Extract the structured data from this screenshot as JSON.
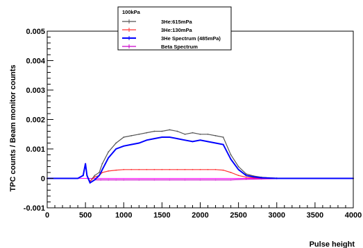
{
  "chart_data": {
    "type": "line",
    "xlabel": "Pulse height",
    "ylabel": "TPC counts / Beam monitor counts",
    "xlim": [
      0,
      4000
    ],
    "ylim": [
      -0.001,
      0.005
    ],
    "x_ticks": [
      0,
      500,
      1000,
      1500,
      2000,
      2500,
      3000,
      3500,
      4000
    ],
    "y_ticks": [
      -0.001,
      0,
      0.001,
      0.002,
      0.003,
      0.004,
      0.005
    ],
    "x_tick_labels": [
      "0",
      "500",
      "1000",
      "1500",
      "2000",
      "2500",
      "3000",
      "3500",
      "4000"
    ],
    "y_tick_labels": [
      "-0.001",
      "0",
      "0.001",
      "0.002",
      "0.003",
      "0.004",
      "0.005"
    ],
    "grid": false,
    "legend_position": "top-center",
    "legend_title": "100kPa",
    "series": [
      {
        "name": "3He:615mPa",
        "color": "#555555",
        "marker": "error-bar",
        "x": [
          0,
          400,
          470,
          500,
          520,
          560,
          620,
          680,
          720,
          800,
          900,
          1000,
          1100,
          1200,
          1300,
          1400,
          1500,
          1600,
          1700,
          1800,
          1900,
          2000,
          2100,
          2200,
          2300,
          2400,
          2500,
          2600,
          2700,
          2800,
          2900,
          3000,
          3100,
          3200,
          3500,
          4000
        ],
        "y": [
          0,
          0,
          0.0001,
          0.0005,
          0.0001,
          -0.0001,
          0.0001,
          0.0002,
          0.0005,
          0.0009,
          0.0012,
          0.0014,
          0.00145,
          0.0015,
          0.00155,
          0.0016,
          0.0016,
          0.00165,
          0.0016,
          0.0015,
          0.00155,
          0.0015,
          0.0015,
          0.00145,
          0.0014,
          0.0008,
          0.0004,
          0.00015,
          8e-05,
          4e-05,
          2e-05,
          1e-05,
          0,
          0,
          0,
          0
        ]
      },
      {
        "name": "3He:130mPa",
        "color": "#ff3333",
        "marker": "error-bar",
        "x": [
          0,
          400,
          470,
          500,
          520,
          560,
          620,
          680,
          720,
          800,
          900,
          1000,
          1100,
          1200,
          1300,
          1400,
          1500,
          1600,
          1700,
          1800,
          1900,
          2000,
          2100,
          2200,
          2300,
          2400,
          2500,
          2600,
          2700,
          2800,
          2900,
          3000,
          3100,
          3200,
          3500,
          4000
        ],
        "y": [
          0,
          0,
          0.0001,
          0.0005,
          0.0001,
          -0.0001,
          5e-05,
          0.0001,
          0.0002,
          0.00025,
          0.00028,
          0.0003,
          0.0003,
          0.0003,
          0.0003,
          0.0003,
          0.0003,
          0.0003,
          0.0003,
          0.0003,
          0.0003,
          0.0003,
          0.0003,
          0.0003,
          0.00028,
          0.0002,
          0.0001,
          4e-05,
          2e-05,
          1e-05,
          0,
          0,
          0,
          0,
          0,
          0
        ]
      },
      {
        "name": "3He Spectrum (485mPa)",
        "color": "#0000ff",
        "marker": "error-bar",
        "x": [
          0,
          400,
          470,
          500,
          520,
          560,
          620,
          680,
          720,
          800,
          900,
          1000,
          1100,
          1200,
          1300,
          1400,
          1500,
          1600,
          1700,
          1800,
          1900,
          2000,
          2100,
          2200,
          2300,
          2400,
          2500,
          2600,
          2700,
          2800,
          2900,
          3000,
          3100,
          3200,
          3500,
          4000
        ],
        "y": [
          0,
          0,
          0.0001,
          0.0005,
          0.0001,
          -0.00015,
          -5e-05,
          0.0001,
          0.0003,
          0.0007,
          0.001,
          0.0011,
          0.00115,
          0.0012,
          0.0013,
          0.00135,
          0.0014,
          0.0014,
          0.00135,
          0.0013,
          0.00125,
          0.0013,
          0.00125,
          0.0012,
          0.00115,
          0.00065,
          0.0003,
          0.0001,
          5e-05,
          2e-05,
          1e-05,
          0,
          0,
          0,
          0,
          0
        ]
      },
      {
        "name": "Beta Spectrum",
        "color": "#cc00cc",
        "marker": "error-bar",
        "x": [
          0,
          400,
          470,
          500,
          520,
          560,
          620,
          700,
          800,
          900,
          1000,
          1200,
          1400,
          1600,
          1800,
          2000,
          2200,
          2400,
          2600,
          2800,
          3000,
          3200,
          3500,
          4000
        ],
        "y": [
          0,
          0,
          0.0001,
          0.0005,
          0.0001,
          -0.00015,
          -5e-05,
          -5e-05,
          -5e-05,
          -5e-05,
          -5e-05,
          -5e-05,
          -5e-05,
          -5e-05,
          -5e-05,
          -5e-05,
          -5e-05,
          -5e-05,
          -3e-05,
          -2e-05,
          -1e-05,
          0,
          0,
          0
        ]
      }
    ],
    "reference_lines": [
      {
        "axis": "y",
        "value": 0,
        "color": "#ff00ff"
      }
    ]
  }
}
